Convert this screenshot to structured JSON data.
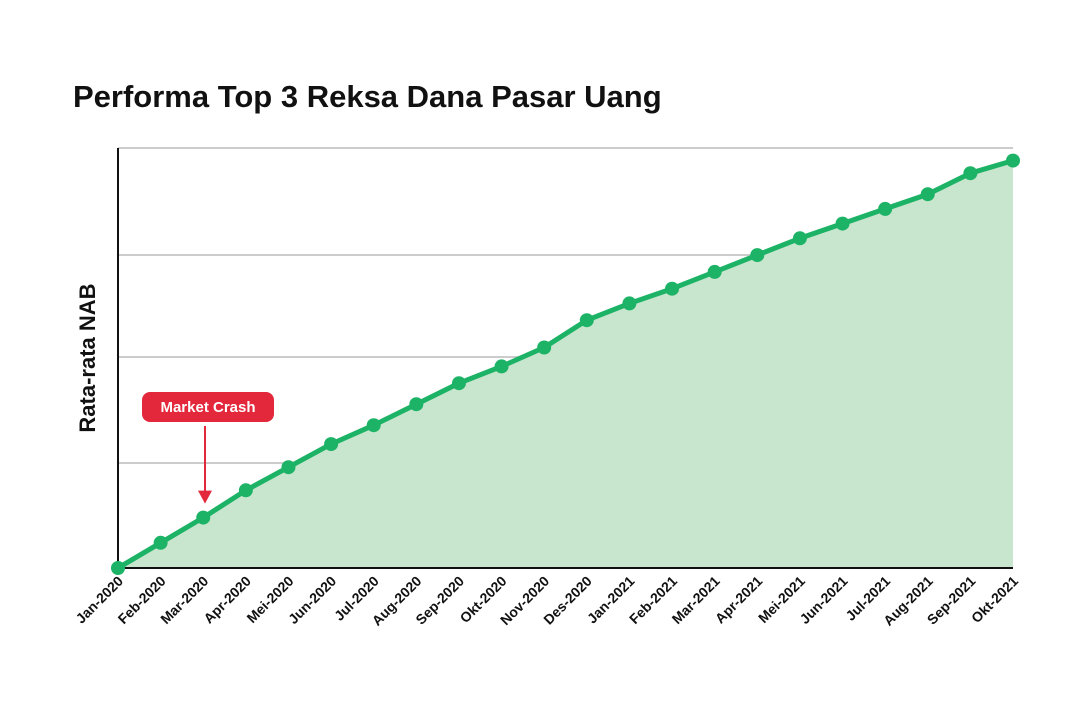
{
  "chart_data": {
    "type": "area",
    "title": "Performa Top 3 Reksa Dana Pasar Uang",
    "xlabel": "",
    "ylabel": "Rata-rata NAB",
    "categories": [
      "Jan-2020",
      "Feb-2020",
      "Mar-2020",
      "Apr-2020",
      "Mei-2020",
      "Jun-2020",
      "Jul-2020",
      "Aug-2020",
      "Sep-2020",
      "Okt-2020",
      "Nov-2020",
      "Des-2020",
      "Jan-2021",
      "Feb-2021",
      "Mar-2021",
      "Apr-2021",
      "Mei-2021",
      "Jun-2021",
      "Jul-2021",
      "Aug-2021",
      "Sep-2021",
      "Okt-2021"
    ],
    "series": [
      {
        "values": [
          0,
          6,
          12,
          18.5,
          24,
          29.5,
          34,
          39,
          44,
          48,
          52.5,
          59,
          63,
          66.5,
          70.5,
          74.5,
          78.5,
          82,
          85.5,
          89,
          94,
          97
        ]
      }
    ],
    "ylim": [
      0,
      100
    ],
    "grid": true,
    "legend": "none",
    "colors": {
      "line": "#1db366",
      "fill": "#c8e6ce",
      "grid": "#cccccc",
      "axis": "#111111",
      "annotation": "#e3283c"
    },
    "annotations": [
      {
        "text": "Market Crash",
        "category": "Mar-2020"
      }
    ]
  }
}
